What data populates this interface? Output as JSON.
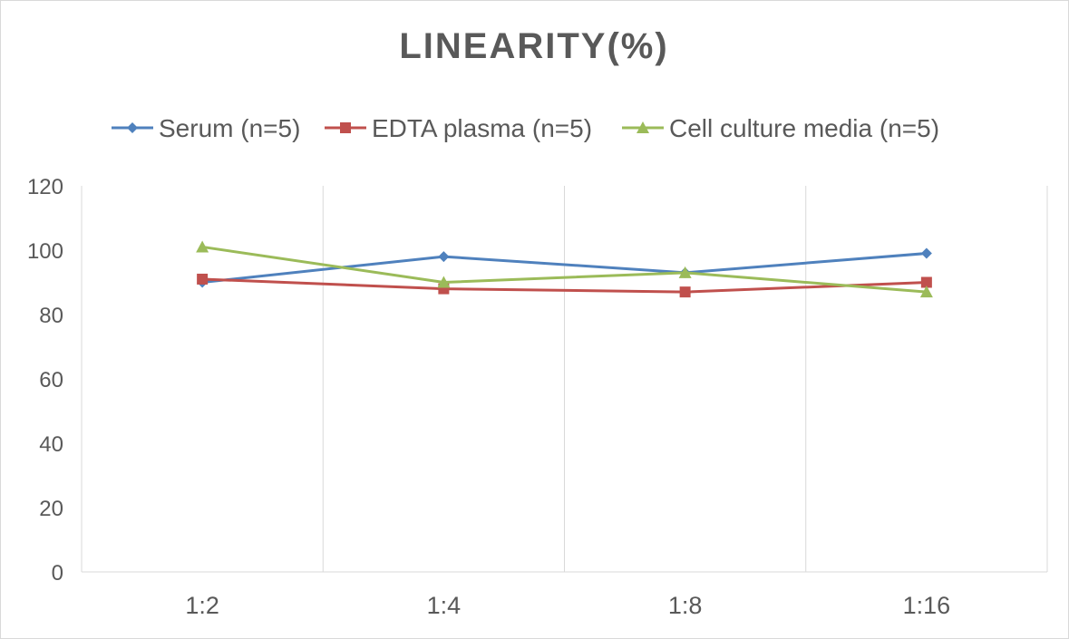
{
  "chart_data": {
    "type": "line",
    "title": "LINEARITY(%)",
    "xlabel": "",
    "ylabel": "",
    "categories": [
      "1:2",
      "1:4",
      "1:8",
      "1:16"
    ],
    "ylim": [
      0,
      120
    ],
    "yticks": [
      0,
      20,
      40,
      60,
      80,
      100,
      120
    ],
    "grid": "vertical",
    "legend_position": "top",
    "series": [
      {
        "name": "Serum (n=5)",
        "color": "#4F81BD",
        "marker": "diamond",
        "values": [
          90,
          98,
          93,
          99
        ]
      },
      {
        "name": "EDTA plasma (n=5)",
        "color": "#C0504D",
        "marker": "square",
        "values": [
          91,
          88,
          87,
          90
        ]
      },
      {
        "name": "Cell culture media (n=5)",
        "color": "#9BBB59",
        "marker": "triangle",
        "values": [
          101,
          90,
          93,
          87
        ]
      }
    ]
  }
}
